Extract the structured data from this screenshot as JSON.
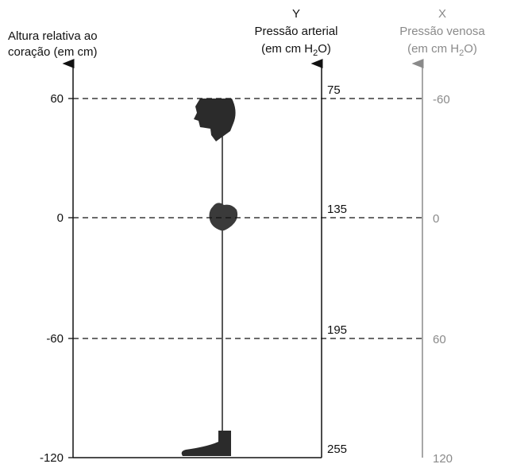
{
  "left_axis": {
    "title_lines": [
      "Altura relativa ao",
      "coração (em cm)"
    ]
  },
  "arterial_axis": {
    "letter": "Y",
    "title": "Pressão arterial",
    "unit_before": "(em cm H",
    "unit_sub": "2",
    "unit_after": "O)"
  },
  "venous_axis": {
    "letter": "X",
    "title": "Pressão venosa",
    "unit_before": "(em cm H",
    "unit_sub": "2",
    "unit_after": "O)"
  },
  "levels": [
    {
      "height": "60",
      "arterial": "75",
      "venous": "-60"
    },
    {
      "height": "0",
      "arterial": "135",
      "venous": "0"
    },
    {
      "height": "-60",
      "arterial": "195",
      "venous": "60"
    },
    {
      "height": "-120",
      "arterial": "255",
      "venous": "120"
    }
  ]
}
